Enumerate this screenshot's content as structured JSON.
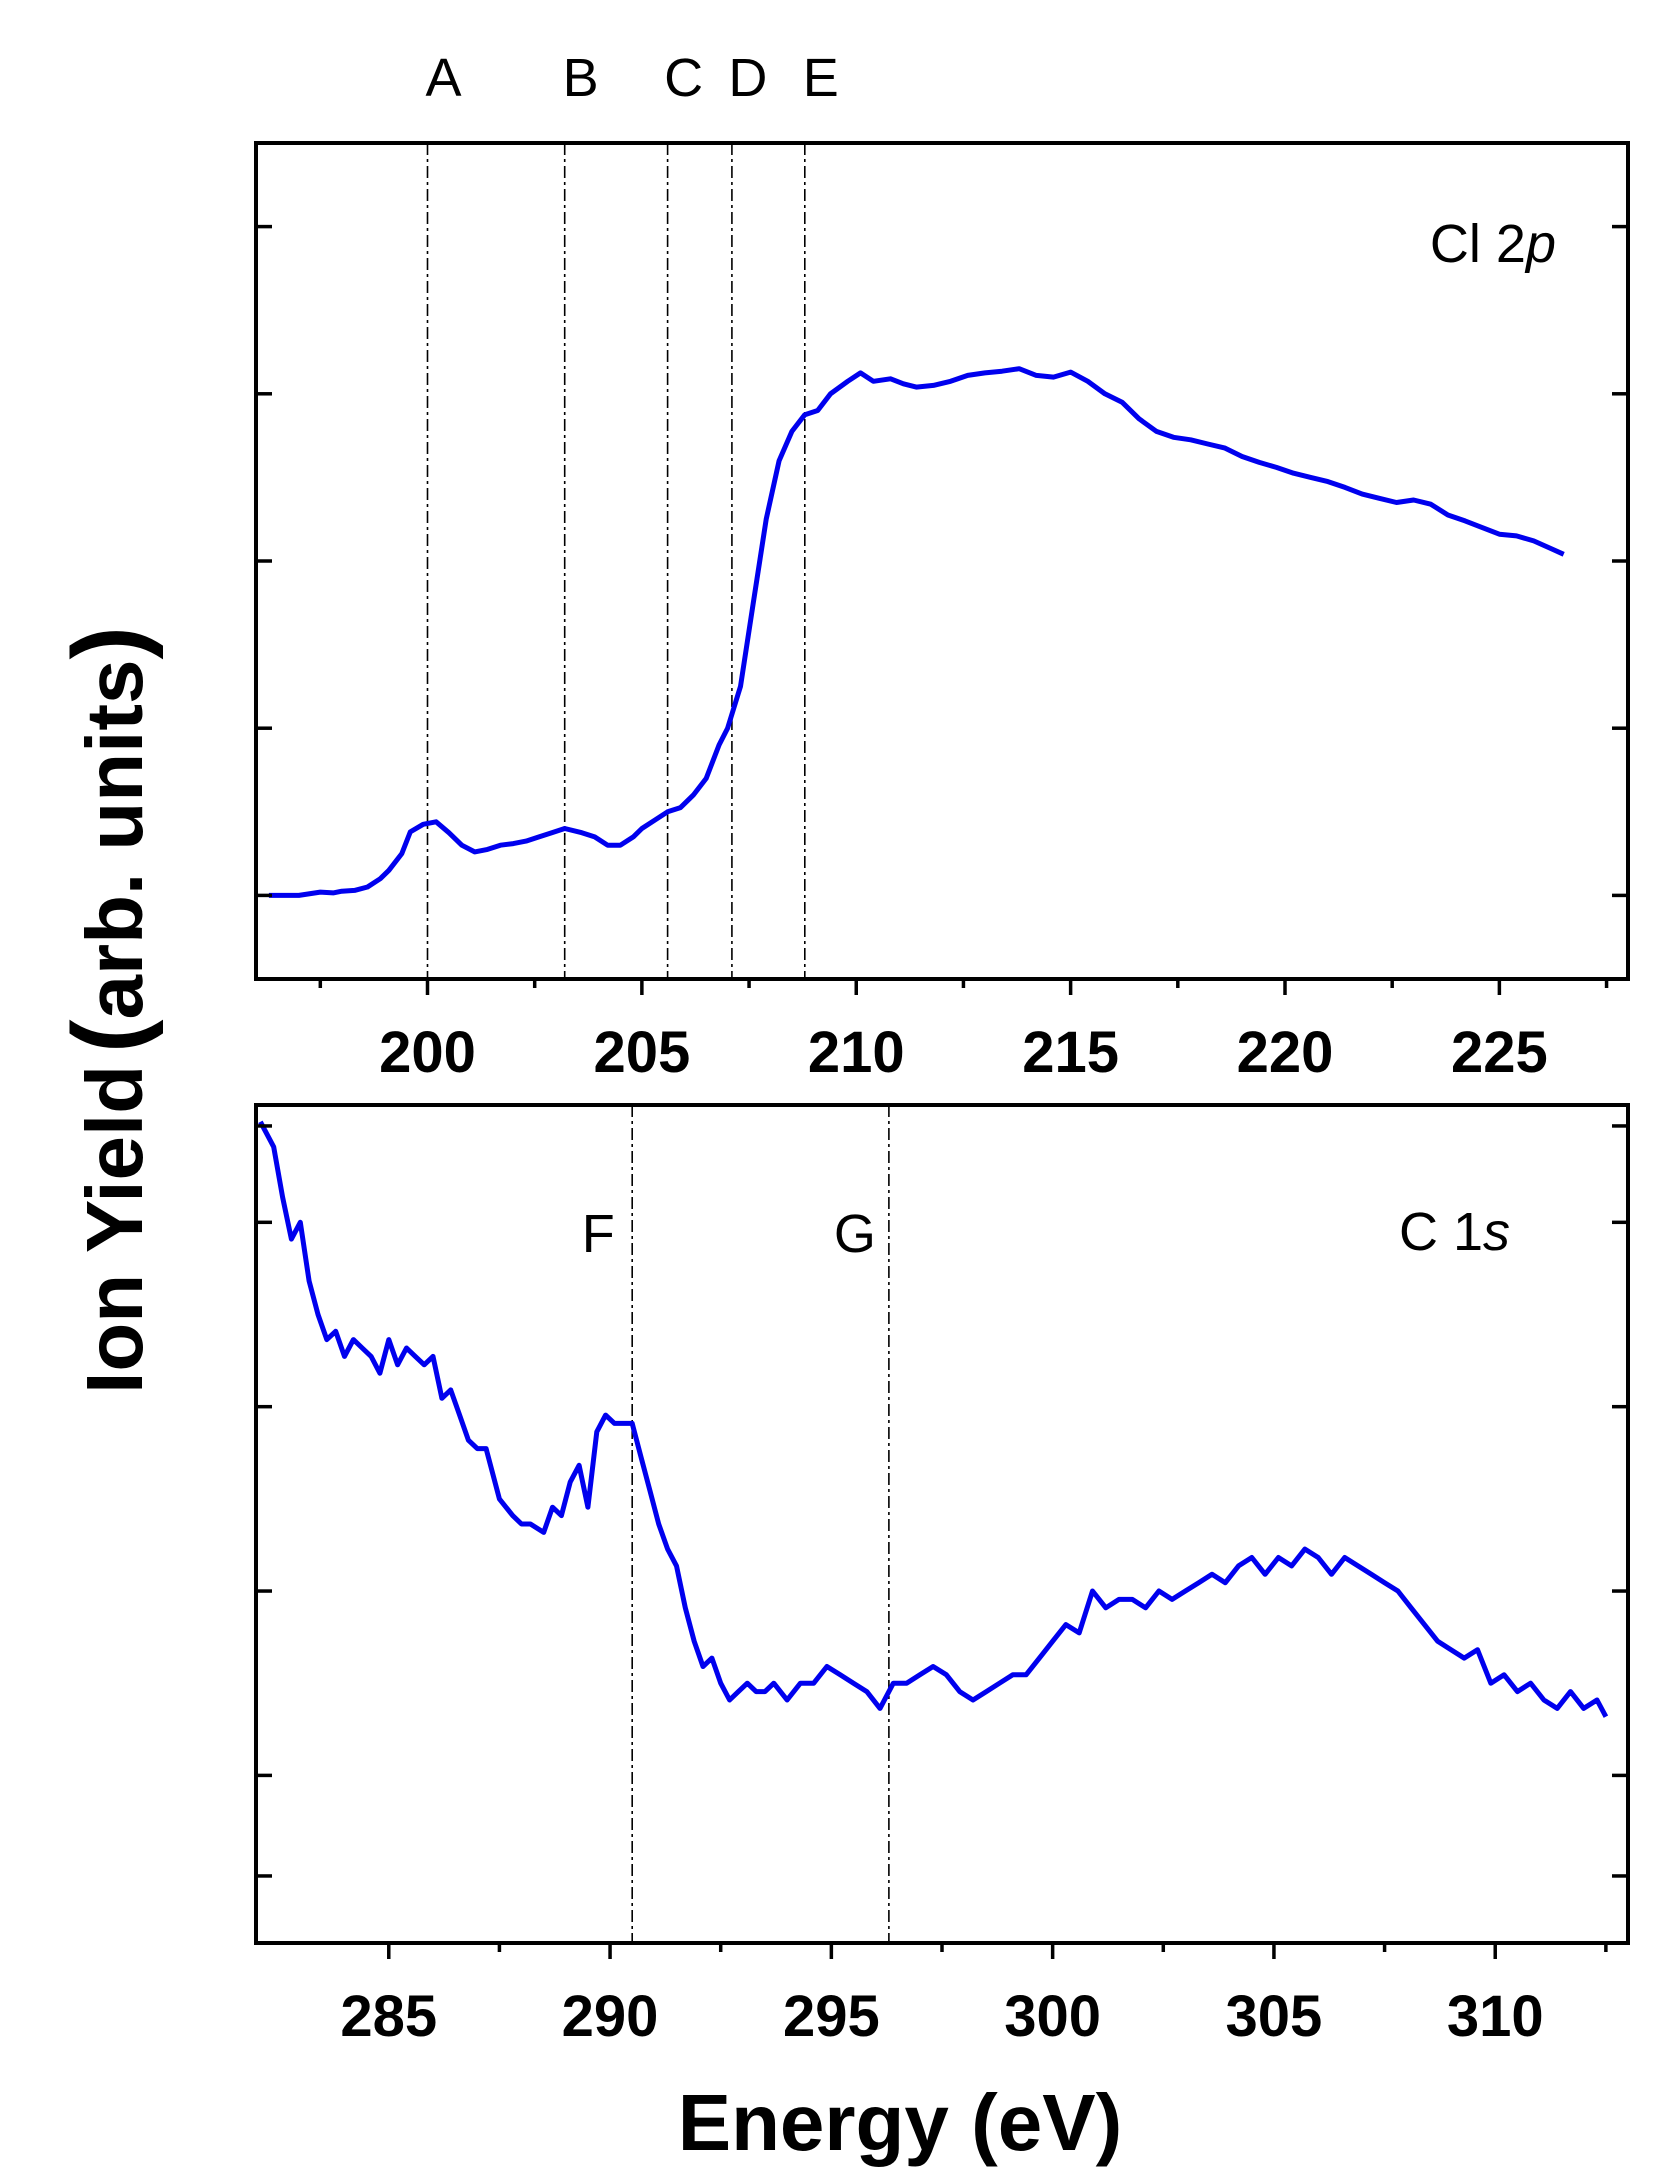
{
  "chart_data": {
    "ylabel_main": "Ion Yield",
    "ylabel_paren_open": "(",
    "ylabel_units": "arb. units",
    "ylabel_paren_close": ")",
    "xlabel": "Energy (eV)",
    "series_color": "#0000ee",
    "panels": [
      {
        "type": "line",
        "label_text": "Cl 2",
        "label_italic": "p",
        "xlim": [
          196,
          228
        ],
        "ylim": [
          0,
          1
        ],
        "xticks": [
          200,
          205,
          210,
          215,
          220,
          225
        ],
        "xticks_minor": [
          197.5,
          202.5,
          207.5,
          212.5,
          217.5,
          222.5,
          227.5
        ],
        "yticks": [
          0.1,
          0.3,
          0.5,
          0.7,
          0.9
        ],
        "peaks": [
          {
            "label": "A",
            "x": 200.0
          },
          {
            "label": "B",
            "x": 203.2
          },
          {
            "label": "C",
            "x": 205.6
          },
          {
            "label": "D",
            "x": 207.1
          },
          {
            "label": "E",
            "x": 208.8
          }
        ],
        "x": [
          196.3,
          197.0,
          197.5,
          197.8,
          198.0,
          198.3,
          198.6,
          198.9,
          199.1,
          199.4,
          199.6,
          199.9,
          200.2,
          200.5,
          200.8,
          201.1,
          201.4,
          201.7,
          202.0,
          202.3,
          202.6,
          202.9,
          203.2,
          203.6,
          203.9,
          204.2,
          204.5,
          204.8,
          205.0,
          205.3,
          205.6,
          205.9,
          206.2,
          206.5,
          206.8,
          207.0,
          207.3,
          207.6,
          207.9,
          208.2,
          208.5,
          208.8,
          209.1,
          209.4,
          209.8,
          210.1,
          210.4,
          210.8,
          211.1,
          211.4,
          211.8,
          212.2,
          212.6,
          213.0,
          213.4,
          213.8,
          214.2,
          214.6,
          215.0,
          215.4,
          215.8,
          216.2,
          216.6,
          217.0,
          217.4,
          217.8,
          218.2,
          218.6,
          219.0,
          219.4,
          219.8,
          220.2,
          220.6,
          221.0,
          221.4,
          221.8,
          222.2,
          222.6,
          223.0,
          223.4,
          223.8,
          224.2,
          224.6,
          225.0,
          225.4,
          225.8,
          226.2,
          226.5
        ],
        "y": [
          0.1,
          0.1,
          0.104,
          0.103,
          0.105,
          0.106,
          0.11,
          0.12,
          0.13,
          0.15,
          0.176,
          0.185,
          0.188,
          0.175,
          0.16,
          0.152,
          0.155,
          0.16,
          0.162,
          0.165,
          0.17,
          0.175,
          0.18,
          0.175,
          0.17,
          0.16,
          0.16,
          0.17,
          0.18,
          0.19,
          0.2,
          0.205,
          0.22,
          0.24,
          0.28,
          0.3,
          0.35,
          0.45,
          0.55,
          0.62,
          0.655,
          0.675,
          0.68,
          0.7,
          0.715,
          0.725,
          0.715,
          0.718,
          0.712,
          0.708,
          0.71,
          0.715,
          0.722,
          0.725,
          0.727,
          0.73,
          0.722,
          0.72,
          0.726,
          0.715,
          0.7,
          0.69,
          0.67,
          0.655,
          0.648,
          0.645,
          0.64,
          0.635,
          0.625,
          0.618,
          0.612,
          0.605,
          0.6,
          0.595,
          0.588,
          0.58,
          0.575,
          0.57,
          0.573,
          0.568,
          0.555,
          0.548,
          0.54,
          0.532,
          0.53,
          0.524,
          0.515,
          0.508
        ]
      },
      {
        "type": "line",
        "label_text": "C 1",
        "label_italic": "s",
        "xlim": [
          282,
          313
        ],
        "ylim": [
          0,
          1
        ],
        "xticks": [
          285,
          290,
          295,
          300,
          305,
          310
        ],
        "xticks_minor": [
          287.5,
          292.5,
          297.5,
          302.5,
          307.5,
          312.5
        ],
        "yticks": [
          0.08,
          0.2,
          0.42,
          0.64,
          0.86,
          0.975
        ],
        "peaks": [
          {
            "label": "F",
            "x": 290.5
          },
          {
            "label": "G",
            "x": 296.3
          }
        ],
        "x": [
          282.1,
          282.4,
          282.6,
          282.8,
          283.0,
          283.2,
          283.4,
          283.6,
          283.8,
          284.0,
          284.2,
          284.4,
          284.6,
          284.8,
          285.0,
          285.2,
          285.4,
          285.6,
          285.8,
          286.0,
          286.2,
          286.4,
          286.6,
          286.8,
          287.0,
          287.2,
          287.5,
          287.8,
          288.0,
          288.2,
          288.5,
          288.7,
          288.9,
          289.1,
          289.3,
          289.5,
          289.7,
          289.9,
          290.1,
          290.3,
          290.5,
          290.7,
          290.9,
          291.1,
          291.3,
          291.5,
          291.7,
          291.9,
          292.1,
          292.3,
          292.5,
          292.7,
          292.9,
          293.1,
          293.3,
          293.5,
          293.7,
          294.0,
          294.3,
          294.6,
          294.9,
          295.2,
          295.5,
          295.8,
          296.1,
          296.4,
          296.7,
          297.0,
          297.3,
          297.6,
          297.9,
          298.2,
          298.5,
          298.8,
          299.1,
          299.4,
          299.7,
          300.0,
          300.3,
          300.6,
          300.9,
          301.2,
          301.5,
          301.8,
          302.1,
          302.4,
          302.7,
          303.0,
          303.3,
          303.6,
          303.9,
          304.2,
          304.5,
          304.8,
          305.1,
          305.4,
          305.7,
          306.0,
          306.3,
          306.6,
          306.9,
          307.2,
          307.5,
          307.8,
          308.1,
          308.4,
          308.7,
          309.0,
          309.3,
          309.6,
          309.9,
          310.2,
          310.5,
          310.8,
          311.1,
          311.4,
          311.7,
          312.0,
          312.3,
          312.5
        ],
        "y": [
          0.98,
          0.95,
          0.89,
          0.84,
          0.86,
          0.79,
          0.75,
          0.72,
          0.73,
          0.7,
          0.72,
          0.71,
          0.7,
          0.68,
          0.72,
          0.69,
          0.71,
          0.7,
          0.69,
          0.7,
          0.65,
          0.66,
          0.63,
          0.6,
          0.59,
          0.59,
          0.53,
          0.51,
          0.5,
          0.5,
          0.49,
          0.52,
          0.51,
          0.55,
          0.57,
          0.52,
          0.61,
          0.63,
          0.62,
          0.62,
          0.62,
          0.58,
          0.54,
          0.5,
          0.47,
          0.45,
          0.4,
          0.36,
          0.33,
          0.34,
          0.31,
          0.29,
          0.3,
          0.31,
          0.3,
          0.3,
          0.31,
          0.29,
          0.31,
          0.31,
          0.33,
          0.32,
          0.31,
          0.3,
          0.28,
          0.31,
          0.31,
          0.32,
          0.33,
          0.32,
          0.3,
          0.29,
          0.3,
          0.31,
          0.32,
          0.32,
          0.34,
          0.36,
          0.38,
          0.37,
          0.42,
          0.4,
          0.41,
          0.41,
          0.4,
          0.42,
          0.41,
          0.42,
          0.43,
          0.44,
          0.43,
          0.45,
          0.46,
          0.44,
          0.46,
          0.45,
          0.47,
          0.46,
          0.44,
          0.46,
          0.45,
          0.44,
          0.43,
          0.42,
          0.4,
          0.38,
          0.36,
          0.35,
          0.34,
          0.35,
          0.31,
          0.32,
          0.3,
          0.31,
          0.29,
          0.28,
          0.3,
          0.28,
          0.29,
          0.27
        ]
      }
    ]
  }
}
